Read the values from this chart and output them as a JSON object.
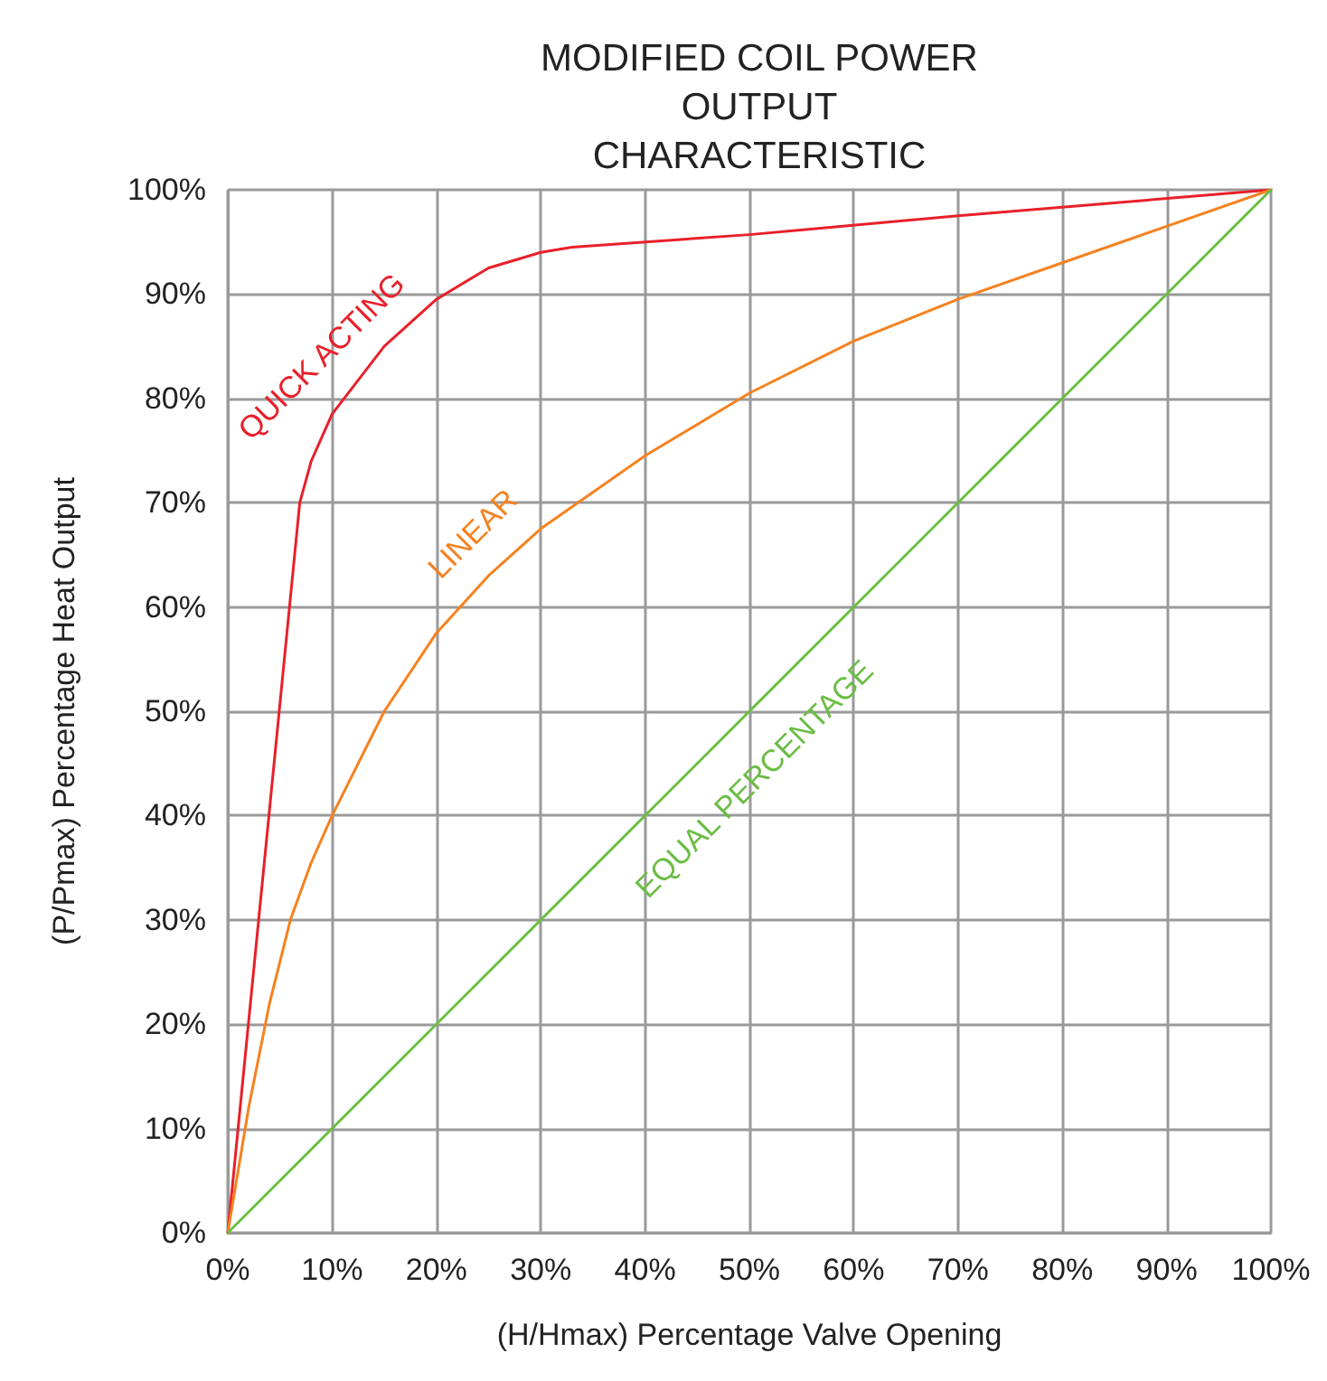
{
  "chart_data": {
    "type": "line",
    "title": "MODIFIED COIL POWER\nOUTPUT\nCHARACTERISTIC",
    "xlabel": "(H/Hmax) Percentage Valve Opening",
    "ylabel": "(P/Pmax) Percentage Heat Output",
    "xlim": [
      0,
      100
    ],
    "ylim": [
      0,
      100
    ],
    "xticks": [
      {
        "value": 0,
        "label": "0%"
      },
      {
        "value": 10,
        "label": "10%"
      },
      {
        "value": 20,
        "label": "20%"
      },
      {
        "value": 30,
        "label": "30%"
      },
      {
        "value": 40,
        "label": "40%"
      },
      {
        "value": 50,
        "label": "50%"
      },
      {
        "value": 60,
        "label": "60%"
      },
      {
        "value": 70,
        "label": "70%"
      },
      {
        "value": 80,
        "label": "80%"
      },
      {
        "value": 90,
        "label": "90%"
      },
      {
        "value": 100,
        "label": "100%"
      }
    ],
    "yticks": [
      {
        "value": 0,
        "label": "0%"
      },
      {
        "value": 10,
        "label": "10%"
      },
      {
        "value": 20,
        "label": "20%"
      },
      {
        "value": 30,
        "label": "30%"
      },
      {
        "value": 40,
        "label": "40%"
      },
      {
        "value": 50,
        "label": "50%"
      },
      {
        "value": 60,
        "label": "60%"
      },
      {
        "value": 70,
        "label": "70%"
      },
      {
        "value": 80,
        "label": "80%"
      },
      {
        "value": 90,
        "label": "90%"
      },
      {
        "value": 100,
        "label": "100%"
      }
    ],
    "grid": true,
    "marker": "none",
    "line_style": "solid",
    "series": [
      {
        "name": "QUICK ACTING",
        "color": "#e8202a",
        "x": [
          0,
          6.9,
          8,
          10,
          15,
          20,
          25,
          30,
          33,
          50,
          70,
          100
        ],
        "values": [
          0,
          70,
          74,
          78.5,
          85,
          89.5,
          92.5,
          94,
          94.5,
          95.7,
          97.5,
          100
        ]
      },
      {
        "name": "LINEAR",
        "color": "#f58220",
        "x": [
          0,
          2,
          4,
          6,
          8,
          10,
          15,
          20,
          25,
          30,
          40,
          50,
          60,
          70,
          80,
          90,
          100
        ],
        "values": [
          0,
          12,
          22,
          30,
          35.5,
          40,
          50,
          57.5,
          63,
          67.5,
          74.5,
          80.5,
          85.5,
          89.5,
          93,
          96.5,
          100
        ]
      },
      {
        "name": "EQUAL PERCENTAGE",
        "color": "#6cbd45",
        "x": [
          0,
          100
        ],
        "values": [
          0,
          100
        ]
      }
    ]
  }
}
